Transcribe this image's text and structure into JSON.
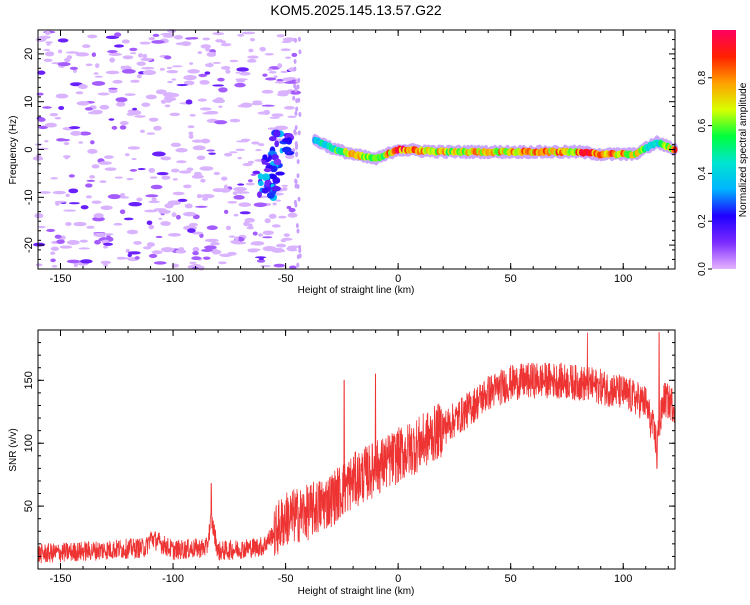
{
  "title": "KOM5.2025.145.13.57.G22",
  "chart_data": [
    {
      "type": "heatmap",
      "xlabel": "Height of straight line (km)",
      "ylabel": "Frequency (Hz)",
      "xlim": [
        -160,
        123
      ],
      "ylim": [
        -25,
        25
      ],
      "xticks": [
        -150,
        -100,
        -50,
        0,
        50,
        100
      ],
      "yticks": [
        -20,
        -10,
        0,
        10,
        20
      ],
      "colorbar": {
        "label": "Normalized spectral amplitude",
        "range": [
          0,
          1
        ],
        "ticks": [
          0.0,
          0.2,
          0.4,
          0.6,
          0.8
        ],
        "colormap": [
          "#e6b3ff",
          "#7b2bff",
          "#1f00ff",
          "#00b4ff",
          "#00e5d0",
          "#00ff3c",
          "#d8ff00",
          "#ffa000",
          "#ff2000",
          "#ff0060"
        ]
      },
      "ridge": {
        "description_points": [
          {
            "x": -37,
            "y": 2,
            "amp": 0.45
          },
          {
            "x": -28,
            "y": 0,
            "amp": 0.55
          },
          {
            "x": -20,
            "y": -1,
            "amp": 0.9
          },
          {
            "x": -10,
            "y": -2,
            "amp": 0.6
          },
          {
            "x": 0,
            "y": 0,
            "amp": 0.95
          },
          {
            "x": 20,
            "y": -0.5,
            "amp": 0.75
          },
          {
            "x": 50,
            "y": -0.5,
            "amp": 0.8
          },
          {
            "x": 80,
            "y": -0.5,
            "amp": 0.85
          },
          {
            "x": 90,
            "y": -1,
            "amp": 0.95
          },
          {
            "x": 105,
            "y": -1,
            "amp": 0.75
          },
          {
            "x": 115,
            "y": 1.5,
            "amp": 0.4
          },
          {
            "x": 123,
            "y": 0,
            "amp": 0.9
          }
        ],
        "cluster": [
          {
            "x": -52,
            "y": 1,
            "amp": 0.25
          },
          {
            "x": -56,
            "y": -4,
            "amp": 0.25
          },
          {
            "x": -58,
            "y": -8,
            "amp": 0.3
          }
        ]
      }
    },
    {
      "type": "line",
      "xlabel": "Height of straight line (km)",
      "ylabel": "SNR (v/v)",
      "xlim": [
        -160,
        123
      ],
      "ylim": [
        0,
        190
      ],
      "xticks": [
        -150,
        -100,
        -50,
        0,
        50,
        100
      ],
      "yticks": [
        50,
        100,
        150
      ],
      "color": "#ee3333",
      "trend": [
        {
          "x": -160,
          "y": 12
        },
        {
          "x": -112,
          "y": 17
        },
        {
          "x": -110,
          "y": 25
        },
        {
          "x": -100,
          "y": 15
        },
        {
          "x": -85,
          "y": 17
        },
        {
          "x": -83,
          "y": 40
        },
        {
          "x": -80,
          "y": 14
        },
        {
          "x": -60,
          "y": 18
        },
        {
          "x": -50,
          "y": 40
        },
        {
          "x": -40,
          "y": 45
        },
        {
          "x": -30,
          "y": 55
        },
        {
          "x": -20,
          "y": 70
        },
        {
          "x": -10,
          "y": 80
        },
        {
          "x": 0,
          "y": 90
        },
        {
          "x": 10,
          "y": 100
        },
        {
          "x": 20,
          "y": 112
        },
        {
          "x": 30,
          "y": 125
        },
        {
          "x": 40,
          "y": 140
        },
        {
          "x": 50,
          "y": 148
        },
        {
          "x": 60,
          "y": 150
        },
        {
          "x": 70,
          "y": 150
        },
        {
          "x": 80,
          "y": 148
        },
        {
          "x": 90,
          "y": 145
        },
        {
          "x": 100,
          "y": 140
        },
        {
          "x": 110,
          "y": 132
        },
        {
          "x": 115,
          "y": 100
        },
        {
          "x": 118,
          "y": 135
        },
        {
          "x": 123,
          "y": 130
        }
      ],
      "peaks": [
        {
          "x": -83,
          "y": 68
        },
        {
          "x": -24,
          "y": 150
        },
        {
          "x": -10,
          "y": 155
        },
        {
          "x": 84,
          "y": 188
        },
        {
          "x": 115,
          "y": 80
        },
        {
          "x": 116,
          "y": 188
        }
      ]
    }
  ]
}
